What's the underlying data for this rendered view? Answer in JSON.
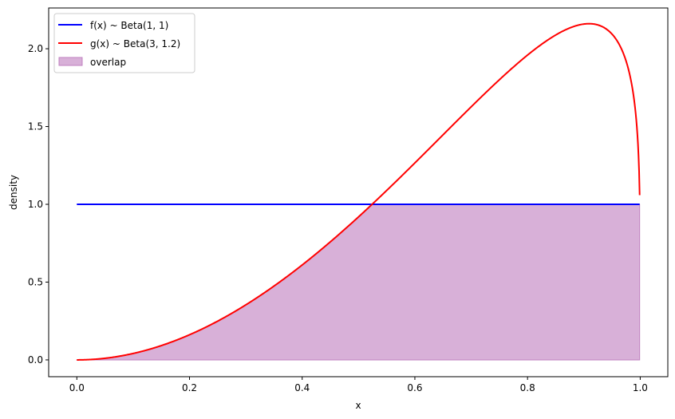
{
  "chart_data": {
    "type": "line",
    "title": "",
    "xlabel": "x",
    "ylabel": "density",
    "xlim": [
      -0.05,
      1.049
    ],
    "ylim": [
      -0.108,
      2.262
    ],
    "x_range": [
      0,
      0.999
    ],
    "xticks": [
      "0.0",
      "0.2",
      "0.4",
      "0.6",
      "0.8",
      "1.0"
    ],
    "yticks": [
      "0.0",
      "0.5",
      "1.0",
      "1.5",
      "2.0"
    ],
    "grid": false,
    "legend_position": "upper-left",
    "series": [
      {
        "name": "f(x) ~ Beta(1, 1)",
        "distribution": "beta",
        "alpha": 1,
        "beta": 1,
        "color": "#0000ff"
      },
      {
        "name": "g(x) ~ Beta(3, 1.2)",
        "distribution": "beta",
        "alpha": 3,
        "beta": 1.2,
        "color": "#ff0000",
        "peak": {
          "x": 0.91,
          "y": 2.16
        },
        "end_value": 1.06
      }
    ],
    "fill": {
      "name": "overlap",
      "definition": "min(f, g)",
      "color": "#d8b0d8",
      "edge_color": "#c080c0"
    }
  }
}
